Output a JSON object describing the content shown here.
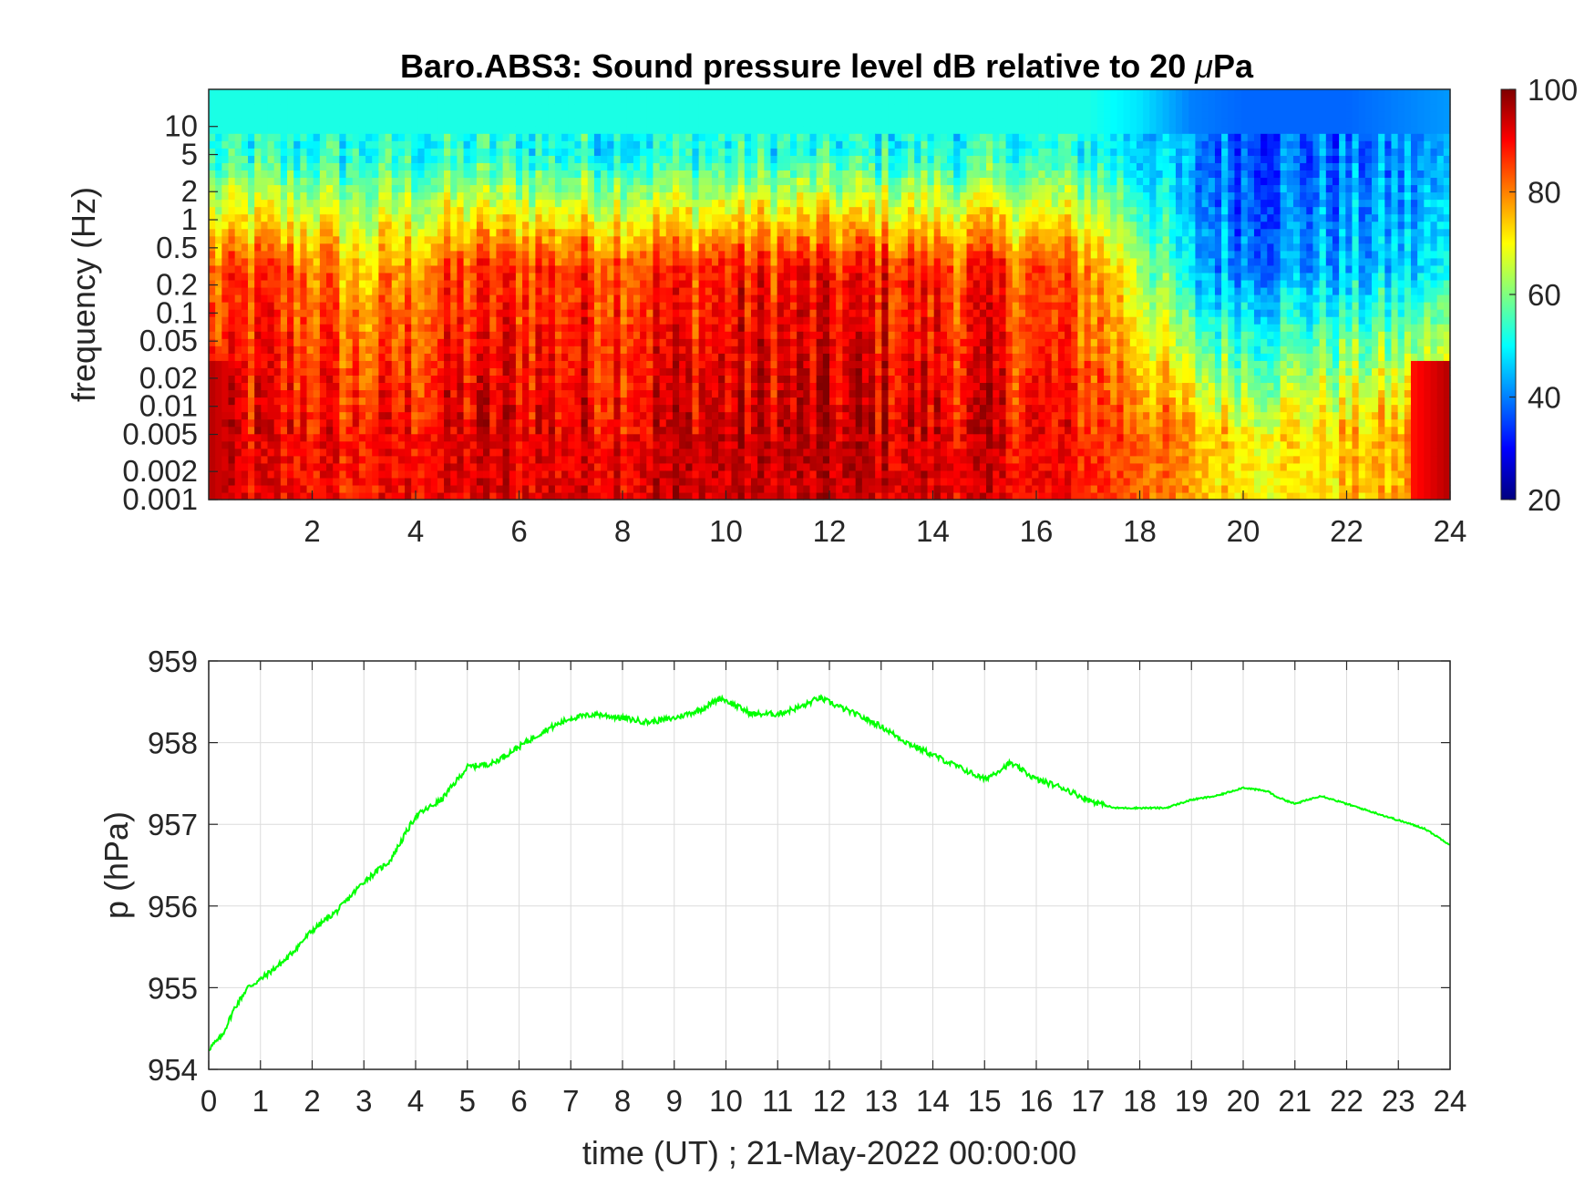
{
  "chart_data": [
    {
      "type": "heatmap",
      "title_prefix": "Baro.ABS3: Sound pressure level dB relative to 20 ",
      "title_mu": "μ",
      "title_suffix": "Pa",
      "xlabel": "",
      "ylabel": "frequency (Hz)",
      "xlim": [
        0,
        24
      ],
      "x_ticks": [
        "2",
        "4",
        "6",
        "8",
        "10",
        "12",
        "14",
        "16",
        "18",
        "20",
        "22",
        "24"
      ],
      "ylim": [
        0.001,
        25
      ],
      "yscale": "log",
      "y_ticks": [
        "10",
        "5",
        "2",
        "1",
        "0.5",
        "0.2",
        "0.1",
        "0.05",
        "0.02",
        "0.01",
        "0.005",
        "0.002",
        "0.001"
      ],
      "colormap": "jet",
      "clim": [
        20,
        100
      ],
      "colorbar_ticks": [
        "100",
        "80",
        "60",
        "40",
        "20"
      ],
      "summary_note_hours": [
        0,
        1,
        2,
        3,
        4,
        5,
        6,
        7,
        8,
        9,
        10,
        11,
        12,
        13,
        14,
        15,
        16,
        17,
        18,
        19,
        20,
        21,
        22,
        23,
        24
      ],
      "high_freq_level_db": [
        52,
        52,
        52,
        52,
        52,
        52,
        52,
        52,
        52,
        52,
        52,
        52,
        52,
        52,
        52,
        52,
        52,
        52,
        48,
        40,
        38,
        38,
        38,
        40,
        42
      ],
      "mid_freq_level_db": [
        80,
        84,
        82,
        74,
        80,
        84,
        86,
        86,
        86,
        86,
        88,
        88,
        88,
        88,
        86,
        86,
        84,
        80,
        66,
        44,
        42,
        42,
        44,
        46,
        48
      ],
      "low_freq_level_db": [
        92,
        90,
        90,
        88,
        90,
        92,
        92,
        92,
        92,
        94,
        94,
        94,
        94,
        94,
        92,
        92,
        90,
        88,
        84,
        76,
        72,
        72,
        74,
        76,
        80
      ]
    },
    {
      "type": "line",
      "xlabel": "time (UT) ; 21-May-2022 00:00:00",
      "ylabel": "p (hPa)",
      "xlim": [
        0,
        24
      ],
      "ylim": [
        954,
        959
      ],
      "x_ticks": [
        "0",
        "1",
        "2",
        "3",
        "4",
        "5",
        "6",
        "7",
        "8",
        "9",
        "10",
        "11",
        "12",
        "13",
        "14",
        "15",
        "16",
        "17",
        "18",
        "19",
        "20",
        "21",
        "22",
        "23",
        "24"
      ],
      "y_ticks": [
        "959",
        "958",
        "957",
        "956",
        "955",
        "954"
      ],
      "grid": true,
      "line_color": "#00ff00",
      "x": [
        0,
        0.25,
        0.5,
        0.75,
        1,
        1.5,
        2,
        2.5,
        3,
        3.5,
        4,
        4.5,
        5,
        5.5,
        6,
        6.5,
        7,
        7.5,
        8,
        8.5,
        9,
        9.5,
        9.9,
        10.5,
        11,
        11.5,
        11.8,
        12.5,
        13,
        13.5,
        14,
        14.5,
        15,
        15.5,
        16,
        16.5,
        17,
        17.5,
        18,
        18.5,
        19,
        19.5,
        20,
        20.5,
        20.6,
        21,
        21.5,
        22,
        22.5,
        23,
        23.5,
        24
      ],
      "y": [
        954.25,
        954.4,
        954.75,
        955.0,
        955.1,
        955.35,
        955.7,
        955.95,
        956.3,
        956.55,
        957.1,
        957.3,
        957.7,
        957.75,
        957.95,
        958.15,
        958.3,
        958.35,
        958.3,
        958.25,
        958.3,
        958.4,
        958.55,
        958.35,
        958.35,
        958.45,
        958.55,
        958.35,
        958.2,
        958.0,
        957.85,
        957.7,
        957.55,
        957.75,
        957.55,
        957.45,
        957.3,
        957.2,
        957.2,
        957.2,
        957.3,
        957.35,
        957.45,
        957.4,
        957.35,
        957.25,
        957.35,
        957.25,
        957.15,
        957.05,
        956.95,
        956.75
      ]
    }
  ]
}
